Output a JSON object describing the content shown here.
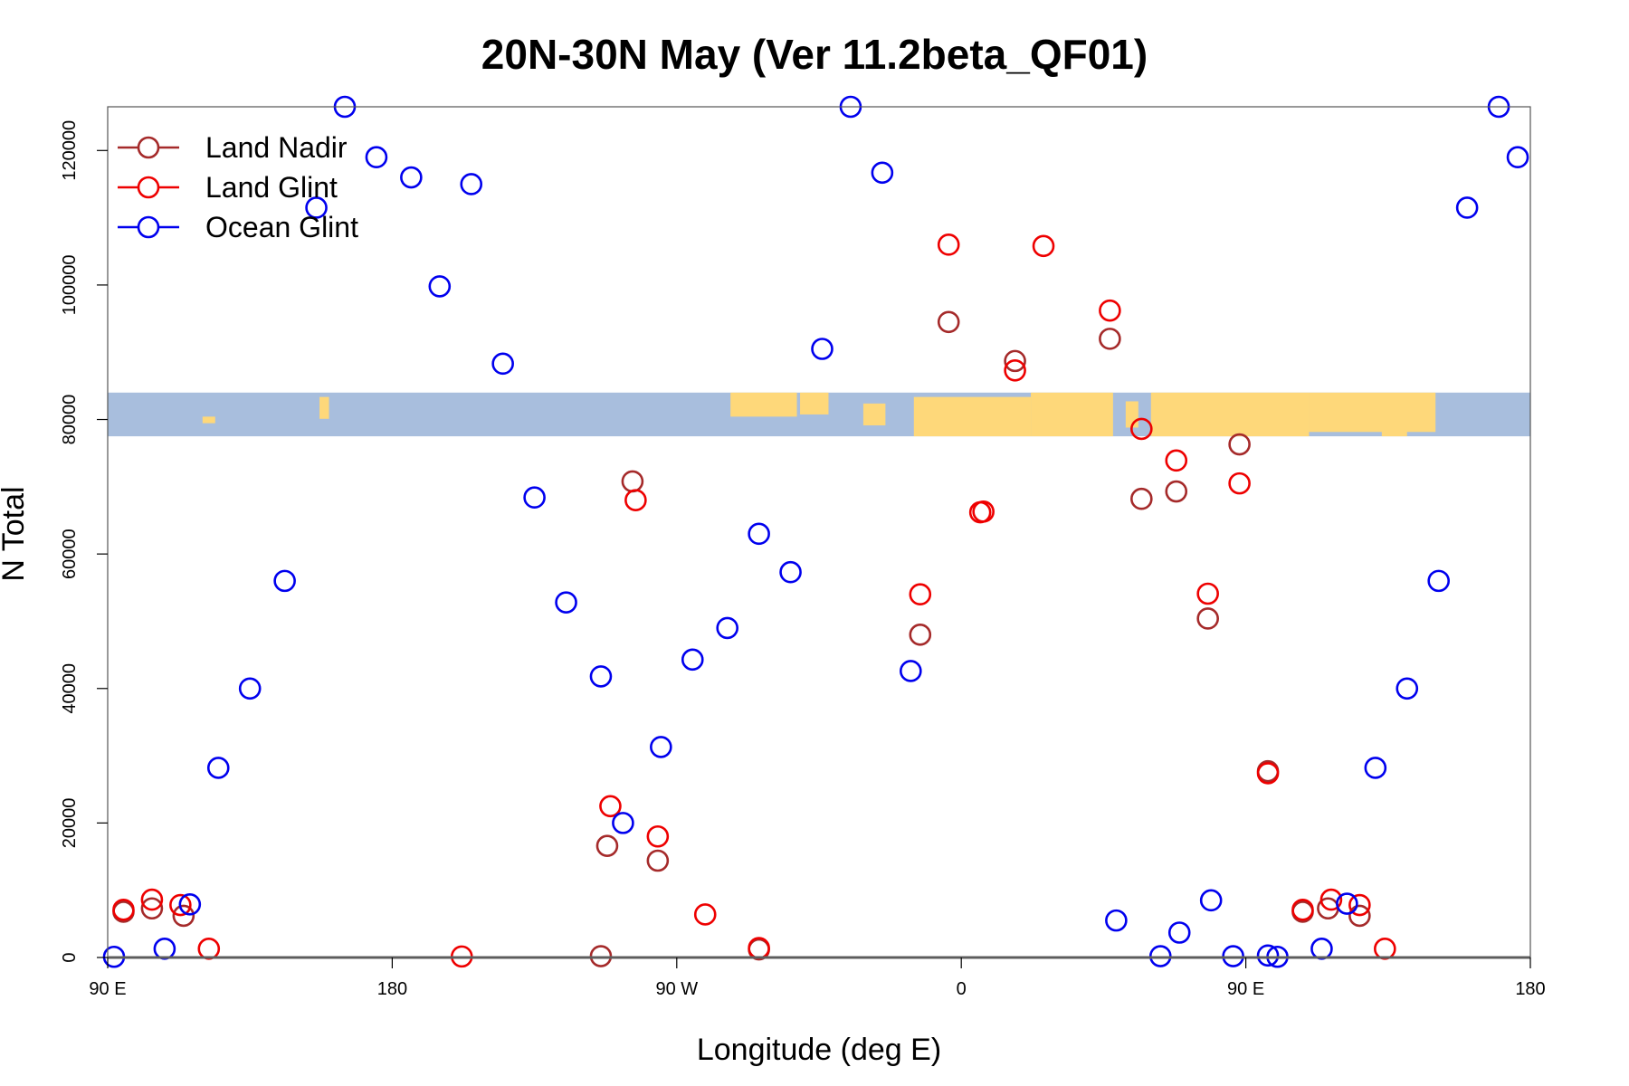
{
  "chart_data": {
    "type": "scatter",
    "title": "20N-30N May (Ver 11.2beta_QF01)",
    "xlabel": "Longitude (deg E)",
    "ylabel": "N Total",
    "xlim": [
      90,
      540
    ],
    "ylim": [
      0,
      126500
    ],
    "x_ticks": [
      {
        "value": 90,
        "label": "90 E"
      },
      {
        "value": 180,
        "label": "180"
      },
      {
        "value": 270,
        "label": "90 W"
      },
      {
        "value": 360,
        "label": "0"
      },
      {
        "value": 450,
        "label": "90 E"
      },
      {
        "value": 540,
        "label": "180"
      }
    ],
    "y_ticks": [
      {
        "value": 0,
        "label": "0"
      },
      {
        "value": 20000,
        "label": "20000"
      },
      {
        "value": 40000,
        "label": "40000"
      },
      {
        "value": 60000,
        "label": "60000"
      },
      {
        "value": 80000,
        "label": "80000"
      },
      {
        "value": 100000,
        "label": "100000"
      },
      {
        "value": 120000,
        "label": "120000"
      }
    ],
    "map_band": {
      "ymin": 77500,
      "ymax": 84000,
      "ocean_color": "#a8bedd",
      "land_color": "#fed87a"
    },
    "legend_position": "top-left",
    "series": [
      {
        "name": "Land Nadir",
        "color": "#a52a2a",
        "points": [
          [
            95,
            6800
          ],
          [
            104,
            7300
          ],
          [
            114,
            6200
          ],
          [
            246,
            200
          ],
          [
            248,
            16600
          ],
          [
            256,
            70800
          ],
          [
            264,
            14400
          ],
          [
            296,
            1200
          ],
          [
            347,
            48000
          ],
          [
            356,
            94500
          ],
          [
            377,
            88700
          ],
          [
            407,
            92000
          ],
          [
            417,
            68200
          ],
          [
            428,
            69300
          ],
          [
            438,
            50400
          ],
          [
            448,
            76300
          ],
          [
            457,
            27700
          ],
          [
            468,
            6800
          ],
          [
            476,
            7300
          ],
          [
            486,
            6200
          ]
        ]
      },
      {
        "name": "Land Glint",
        "color": "#ee0000",
        "points": [
          [
            95,
            7100
          ],
          [
            104,
            8600
          ],
          [
            113,
            7800
          ],
          [
            122,
            1300
          ],
          [
            202,
            150
          ],
          [
            249,
            22500
          ],
          [
            257,
            68000
          ],
          [
            264,
            18000
          ],
          [
            296,
            1400
          ],
          [
            279,
            6400
          ],
          [
            347,
            54000
          ],
          [
            356,
            106000
          ],
          [
            366,
            66200
          ],
          [
            367,
            66300
          ],
          [
            377,
            87300
          ],
          [
            386,
            105800
          ],
          [
            407,
            96200
          ],
          [
            417,
            78600
          ],
          [
            428,
            73900
          ],
          [
            438,
            54100
          ],
          [
            448,
            70500
          ],
          [
            457,
            27400
          ],
          [
            468,
            7100
          ],
          [
            477,
            8600
          ],
          [
            486,
            7800
          ],
          [
            494,
            1300
          ]
        ]
      },
      {
        "name": "Ocean Glint",
        "color": "#0000ee",
        "points": [
          [
            92,
            100
          ],
          [
            108,
            1300
          ],
          [
            116,
            7900
          ],
          [
            125,
            28200
          ],
          [
            135,
            40000
          ],
          [
            146,
            56000
          ],
          [
            156,
            111500
          ],
          [
            165,
            126500
          ],
          [
            175,
            119000
          ],
          [
            186,
            116000
          ],
          [
            195,
            99800
          ],
          [
            205,
            115000
          ],
          [
            215,
            88300
          ],
          [
            225,
            68400
          ],
          [
            235,
            52800
          ],
          [
            246,
            41800
          ],
          [
            253,
            20000
          ],
          [
            265,
            31300
          ],
          [
            275,
            44300
          ],
          [
            286,
            49000
          ],
          [
            296,
            63000
          ],
          [
            306,
            57300
          ],
          [
            316,
            90500
          ],
          [
            325,
            126500
          ],
          [
            335,
            116700
          ],
          [
            344,
            42600
          ],
          [
            409,
            5500
          ],
          [
            423,
            200
          ],
          [
            429,
            3700
          ],
          [
            439,
            8500
          ],
          [
            446,
            200
          ],
          [
            457,
            300
          ],
          [
            460,
            100
          ],
          [
            474,
            1300
          ],
          [
            482,
            8000
          ],
          [
            491,
            28200
          ],
          [
            501,
            40000
          ],
          [
            511,
            56000
          ],
          [
            520,
            111500
          ],
          [
            530,
            126500
          ],
          [
            536,
            119000
          ]
        ]
      }
    ]
  }
}
